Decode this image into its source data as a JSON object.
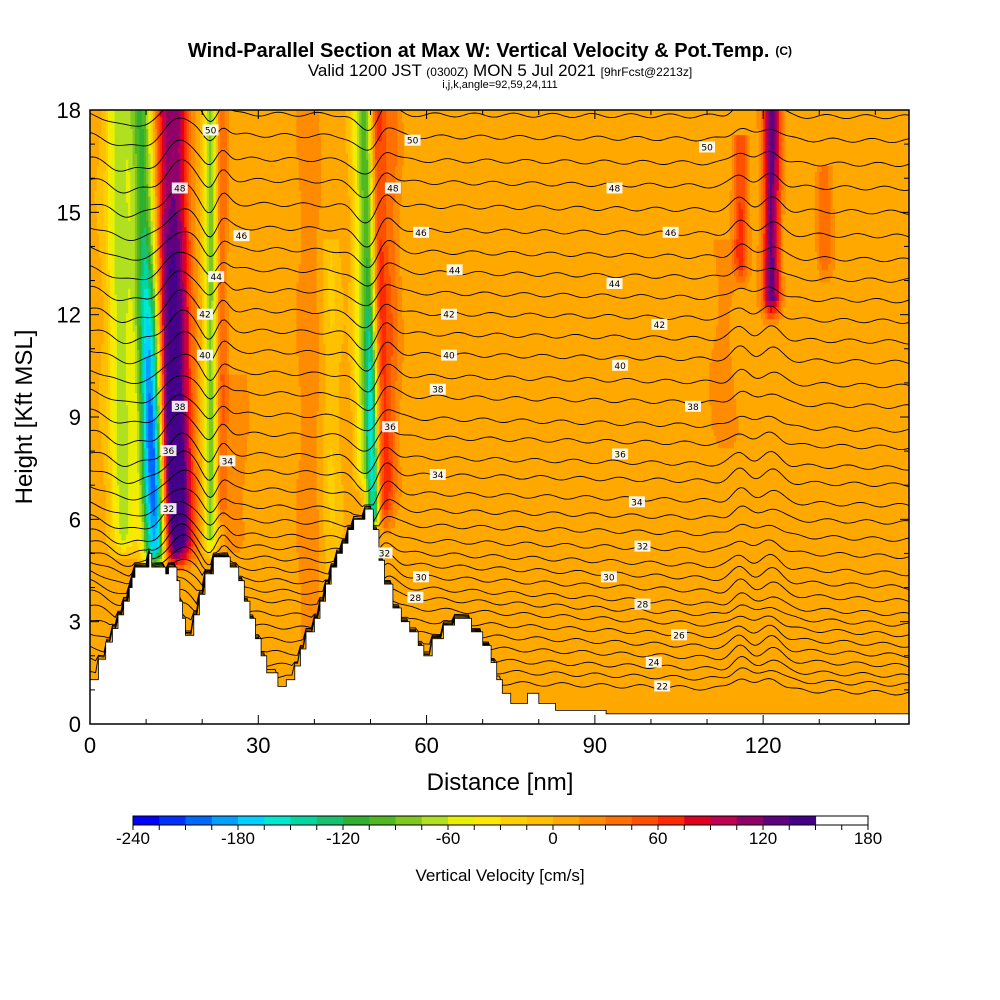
{
  "chart_data": {
    "type": "heatmap",
    "title": "Wind-Parallel Section at Max W: Vertical Velocity & Pot.Temp.",
    "title_mark": "(C)",
    "subtitle_valid": "Valid 1200 JST",
    "subtitle_utc": "(0300Z)",
    "subtitle_date": "MON 5 Jul 2021",
    "subtitle_fcst": "[9hrFcst@2213z]",
    "subtitle_index": "i,j,k,angle=92,59,24,111",
    "xlabel": "Distance [nm]",
    "ylabel": "Height [Kft MSL]",
    "xlim": [
      0,
      146
    ],
    "ylim": [
      0,
      18
    ],
    "x_ticks": [
      0,
      30,
      60,
      90,
      120
    ],
    "x_tick_labels": [
      "0",
      "30",
      "60",
      "90",
      "120"
    ],
    "y_ticks": [
      0,
      3,
      6,
      9,
      12,
      15,
      18
    ],
    "y_tick_labels": [
      "0",
      "3",
      "6",
      "9",
      "12",
      "15",
      "18"
    ],
    "colorbar": {
      "label": "Vertical Velocity [cm/s]",
      "min": -240,
      "max": 180,
      "step": 15,
      "tick_values": [
        -240,
        -180,
        -120,
        -60,
        0,
        60,
        120,
        180
      ],
      "tick_labels": [
        "-240",
        "-180",
        "-120",
        "-60",
        "0",
        "60",
        "120",
        "180"
      ],
      "colors": [
        "#0000ff",
        "#0030ff",
        "#0068ff",
        "#00a0ff",
        "#00d0ff",
        "#00e8d0",
        "#00d8a0",
        "#18c070",
        "#30b030",
        "#50b820",
        "#80c820",
        "#b0e020",
        "#e8f000",
        "#ffe800",
        "#ffd000",
        "#ffc000",
        "#ffa800",
        "#ff8c00",
        "#ff7000",
        "#ff5000",
        "#ff2a00",
        "#e00020",
        "#c00050",
        "#900068",
        "#600080",
        "#440088"
      ]
    },
    "velocity_features": [
      {
        "x": 12,
        "y_bottom": 4.6,
        "y_top": 18,
        "lean": -0.22,
        "width": 2.2,
        "peak": -240
      },
      {
        "x": 14.5,
        "y_bottom": 4.6,
        "y_top": 18,
        "lean": -0.1,
        "width": 2.2,
        "peak": 170
      },
      {
        "x": 17,
        "y_bottom": 4.8,
        "y_top": 18,
        "lean": -0.1,
        "width": 2.0,
        "peak": 80
      },
      {
        "x": 6,
        "y_bottom": 5.0,
        "y_top": 18,
        "lean": -0.08,
        "width": 2.2,
        "peak": -75
      },
      {
        "x": 21.5,
        "y_bottom": 5.0,
        "y_top": 18,
        "lean": 0.0,
        "width": 1.2,
        "peak": -90
      },
      {
        "x": 23.5,
        "y_bottom": 6.0,
        "y_top": 18,
        "lean": 0.0,
        "width": 1.0,
        "peak": 40
      },
      {
        "x": 50.5,
        "y_bottom": 5.7,
        "y_top": 18,
        "lean": -0.1,
        "width": 1.1,
        "peak": -170
      },
      {
        "x": 48.5,
        "y_bottom": 7.0,
        "y_top": 18,
        "lean": -0.05,
        "width": 1.3,
        "peak": -60
      },
      {
        "x": 52.5,
        "y_bottom": 5.8,
        "y_top": 18,
        "lean": -0.1,
        "width": 1.5,
        "peak": 55
      },
      {
        "x": 54,
        "y_bottom": 6.5,
        "y_top": 18,
        "lean": 0.0,
        "width": 1.5,
        "peak": 25
      },
      {
        "x": 26,
        "y_bottom": 5.0,
        "y_top": 10,
        "lean": 0.0,
        "width": 2.0,
        "peak": 20
      },
      {
        "x": 39,
        "y_bottom": 2.0,
        "y_top": 18,
        "lean": 0.0,
        "width": 2.0,
        "peak": 20
      },
      {
        "x": 43,
        "y_bottom": 4.0,
        "y_top": 14,
        "lean": 0.0,
        "width": 1.5,
        "peak": -20
      },
      {
        "x": 121.5,
        "y_bottom": 12,
        "y_top": 18,
        "lean": 0.0,
        "width": 1.5,
        "peak": 120
      },
      {
        "x": 116,
        "y_bottom": 13,
        "y_top": 17,
        "lean": 0.0,
        "width": 1.3,
        "peak": 55
      },
      {
        "x": 131,
        "y_bottom": 13,
        "y_top": 16,
        "lean": 0.0,
        "width": 1.3,
        "peak": 35
      },
      {
        "x": 113,
        "y_bottom": 8,
        "y_top": 14,
        "lean": 0.0,
        "width": 2.5,
        "peak": 15
      }
    ],
    "terrain": [
      [
        0,
        1.3
      ],
      [
        1.5,
        1.3
      ],
      [
        1.5,
        1.9
      ],
      [
        2.8,
        1.9
      ],
      [
        2.8,
        2.4
      ],
      [
        4,
        2.4
      ],
      [
        4,
        2.8
      ],
      [
        5,
        2.8
      ],
      [
        5,
        3.2
      ],
      [
        6,
        3.2
      ],
      [
        6,
        3.6
      ],
      [
        7,
        3.6
      ],
      [
        7,
        4.0
      ],
      [
        7.5,
        4.0
      ],
      [
        7.5,
        4.3
      ],
      [
        8,
        4.3
      ],
      [
        8,
        4.6
      ],
      [
        10.5,
        4.6
      ],
      [
        10.5,
        5.0
      ],
      [
        11,
        5.0
      ],
      [
        11,
        4.6
      ],
      [
        13.5,
        4.6
      ],
      [
        13.5,
        4.4
      ],
      [
        14,
        4.4
      ],
      [
        14,
        4.6
      ],
      [
        15.5,
        4.6
      ],
      [
        15.5,
        4.2
      ],
      [
        16,
        4.2
      ],
      [
        16,
        3.6
      ],
      [
        16.5,
        3.6
      ],
      [
        16.5,
        3.1
      ],
      [
        17,
        3.1
      ],
      [
        17,
        2.6
      ],
      [
        18.5,
        2.6
      ],
      [
        18.5,
        3.2
      ],
      [
        19.5,
        3.2
      ],
      [
        19.5,
        3.8
      ],
      [
        20.5,
        3.8
      ],
      [
        20.5,
        4.4
      ],
      [
        22,
        4.4
      ],
      [
        22,
        4.9
      ],
      [
        25,
        4.9
      ],
      [
        25,
        4.6
      ],
      [
        26.5,
        4.6
      ],
      [
        26.5,
        4.2
      ],
      [
        27.5,
        4.2
      ],
      [
        27.5,
        3.6
      ],
      [
        28.5,
        3.6
      ],
      [
        28.5,
        3.1
      ],
      [
        29.5,
        3.1
      ],
      [
        29.5,
        2.5
      ],
      [
        30.5,
        2.5
      ],
      [
        30.5,
        2.0
      ],
      [
        31.5,
        2.0
      ],
      [
        31.5,
        1.5
      ],
      [
        33.5,
        1.5
      ],
      [
        33.5,
        1.1
      ],
      [
        35,
        1.1
      ],
      [
        35,
        1.3
      ],
      [
        36.5,
        1.3
      ],
      [
        36.5,
        1.7
      ],
      [
        37.5,
        1.7
      ],
      [
        37.5,
        2.2
      ],
      [
        38.5,
        2.2
      ],
      [
        38.5,
        2.7
      ],
      [
        40,
        2.7
      ],
      [
        40,
        3.1
      ],
      [
        41,
        3.1
      ],
      [
        41,
        3.6
      ],
      [
        42,
        3.6
      ],
      [
        42,
        4.1
      ],
      [
        43,
        4.1
      ],
      [
        43,
        4.6
      ],
      [
        44,
        4.6
      ],
      [
        44,
        5.0
      ],
      [
        45,
        5.0
      ],
      [
        45,
        5.3
      ],
      [
        46,
        5.3
      ],
      [
        46,
        5.7
      ],
      [
        47,
        5.7
      ],
      [
        47,
        6.0
      ],
      [
        49,
        6.0
      ],
      [
        49,
        6.3
      ],
      [
        50.5,
        6.3
      ],
      [
        50.5,
        5.7
      ],
      [
        51.5,
        5.7
      ],
      [
        51.5,
        4.8
      ],
      [
        52.5,
        4.8
      ],
      [
        52.5,
        4.1
      ],
      [
        54,
        4.1
      ],
      [
        54,
        3.4
      ],
      [
        55.5,
        3.4
      ],
      [
        55.5,
        3.0
      ],
      [
        57,
        3.0
      ],
      [
        57,
        2.7
      ],
      [
        58.5,
        2.7
      ],
      [
        58.5,
        2.3
      ],
      [
        59.5,
        2.3
      ],
      [
        59.5,
        2.0
      ],
      [
        61,
        2.0
      ],
      [
        61,
        2.5
      ],
      [
        63,
        2.5
      ],
      [
        63,
        2.9
      ],
      [
        65,
        2.9
      ],
      [
        65,
        3.1
      ],
      [
        68,
        3.1
      ],
      [
        68,
        2.7
      ],
      [
        70,
        2.7
      ],
      [
        70,
        2.3
      ],
      [
        71.5,
        2.3
      ],
      [
        71.5,
        1.8
      ],
      [
        72.5,
        1.8
      ],
      [
        72.5,
        1.3
      ],
      [
        73.5,
        1.3
      ],
      [
        73.5,
        0.9
      ],
      [
        75,
        0.9
      ],
      [
        75,
        0.6
      ],
      [
        78,
        0.6
      ],
      [
        78,
        0.9
      ],
      [
        80,
        0.9
      ],
      [
        80,
        0.6
      ],
      [
        83,
        0.6
      ],
      [
        83,
        0.4
      ],
      [
        92,
        0.4
      ],
      [
        92,
        0.3
      ],
      [
        146,
        0.3
      ]
    ],
    "contours": [
      {
        "value": 20,
        "y_west": 1.5,
        "y_east": 0.9
      },
      {
        "value": 21,
        "y_west": 1.9,
        "y_east": 1.15
      },
      {
        "value": 22,
        "y_west": 2.3,
        "y_east": 1.4
      },
      {
        "value": 23,
        "y_west": 2.7,
        "y_east": 1.7
      },
      {
        "value": 24,
        "y_west": 3.1,
        "y_east": 2.0
      },
      {
        "value": 25,
        "y_west": 3.5,
        "y_east": 2.3
      },
      {
        "value": 26,
        "y_west": 3.9,
        "y_east": 2.6
      },
      {
        "value": 27,
        "y_west": 4.2,
        "y_east": 2.9
      },
      {
        "value": 28,
        "y_west": 4.5,
        "y_east": 3.2
      },
      {
        "value": 29,
        "y_west": 4.8,
        "y_east": 3.6
      },
      {
        "value": 30,
        "y_west": 5.1,
        "y_east": 4.0
      },
      {
        "value": 31,
        "y_west": 5.4,
        "y_east": 4.4
      },
      {
        "value": 32,
        "y_west": 5.7,
        "y_east": 4.9
      },
      {
        "value": 33,
        "y_west": 6.1,
        "y_east": 5.4
      },
      {
        "value": 34,
        "y_west": 6.5,
        "y_east": 5.9
      },
      {
        "value": 35,
        "y_west": 7.0,
        "y_east": 6.4
      },
      {
        "value": 36,
        "y_west": 7.5,
        "y_east": 7.0
      },
      {
        "value": 37,
        "y_west": 8.0,
        "y_east": 7.5
      },
      {
        "value": 38,
        "y_west": 8.6,
        "y_east": 8.1
      },
      {
        "value": 39,
        "y_west": 9.2,
        "y_east": 8.6
      },
      {
        "value": 40,
        "y_west": 9.8,
        "y_east": 9.3
      },
      {
        "value": 41,
        "y_west": 10.4,
        "y_east": 9.9
      },
      {
        "value": 42,
        "y_west": 11.0,
        "y_east": 10.6
      },
      {
        "value": 43,
        "y_west": 11.6,
        "y_east": 11.2
      },
      {
        "value": 44,
        "y_west": 12.2,
        "y_east": 11.8
      },
      {
        "value": 45,
        "y_west": 12.8,
        "y_east": 12.4
      },
      {
        "value": 46,
        "y_west": 13.4,
        "y_east": 13.0
      },
      {
        "value": 47,
        "y_west": 14.0,
        "y_east": 13.6
      },
      {
        "value": 48,
        "y_west": 14.6,
        "y_east": 14.3
      },
      {
        "value": 49,
        "y_west": 15.3,
        "y_east": 15.0
      },
      {
        "value": 50,
        "y_west": 16.0,
        "y_east": 15.7
      },
      {
        "value": 51,
        "y_west": 16.6,
        "y_east": 16.4
      },
      {
        "value": 52,
        "y_west": 17.3,
        "y_east": 17.1
      },
      {
        "value": 53,
        "y_west": 17.9,
        "y_east": 17.8
      }
    ],
    "contour_labels": [
      {
        "text": "50",
        "x": 21.5,
        "y": 17.4
      },
      {
        "text": "48",
        "x": 16,
        "y": 15.7
      },
      {
        "text": "46",
        "x": 27,
        "y": 14.3
      },
      {
        "text": "44",
        "x": 22.5,
        "y": 13.1
      },
      {
        "text": "42",
        "x": 20.5,
        "y": 12.0
      },
      {
        "text": "40",
        "x": 20.5,
        "y": 10.8
      },
      {
        "text": "38",
        "x": 16,
        "y": 9.3
      },
      {
        "text": "36",
        "x": 14,
        "y": 8.0
      },
      {
        "text": "34",
        "x": 24.5,
        "y": 7.7
      },
      {
        "text": "32",
        "x": 14,
        "y": 6.3
      },
      {
        "text": "50",
        "x": 57.5,
        "y": 17.1
      },
      {
        "text": "48",
        "x": 54,
        "y": 15.7
      },
      {
        "text": "46",
        "x": 59,
        "y": 14.4
      },
      {
        "text": "44",
        "x": 65,
        "y": 13.3
      },
      {
        "text": "42",
        "x": 64,
        "y": 12.0
      },
      {
        "text": "40",
        "x": 64,
        "y": 10.8
      },
      {
        "text": "38",
        "x": 62,
        "y": 9.8
      },
      {
        "text": "36",
        "x": 53.5,
        "y": 8.7
      },
      {
        "text": "34",
        "x": 62,
        "y": 7.3
      },
      {
        "text": "32",
        "x": 52.5,
        "y": 5.0
      },
      {
        "text": "30",
        "x": 59,
        "y": 4.3
      },
      {
        "text": "28",
        "x": 58,
        "y": 3.7
      },
      {
        "text": "50",
        "x": 110,
        "y": 16.9
      },
      {
        "text": "48",
        "x": 93.5,
        "y": 15.7
      },
      {
        "text": "46",
        "x": 103.5,
        "y": 14.4
      },
      {
        "text": "44",
        "x": 93.5,
        "y": 12.9
      },
      {
        "text": "42",
        "x": 101.5,
        "y": 11.7
      },
      {
        "text": "40",
        "x": 94.5,
        "y": 10.5
      },
      {
        "text": "38",
        "x": 107.5,
        "y": 9.3
      },
      {
        "text": "36",
        "x": 94.5,
        "y": 7.9
      },
      {
        "text": "34",
        "x": 97.5,
        "y": 6.5
      },
      {
        "text": "32",
        "x": 98.5,
        "y": 5.2
      },
      {
        "text": "30",
        "x": 92.5,
        "y": 4.3
      },
      {
        "text": "28",
        "x": 98.5,
        "y": 3.5
      },
      {
        "text": "26",
        "x": 105,
        "y": 2.6
      },
      {
        "text": "24",
        "x": 100.5,
        "y": 1.8
      },
      {
        "text": "22",
        "x": 102,
        "y": 1.1
      }
    ]
  }
}
